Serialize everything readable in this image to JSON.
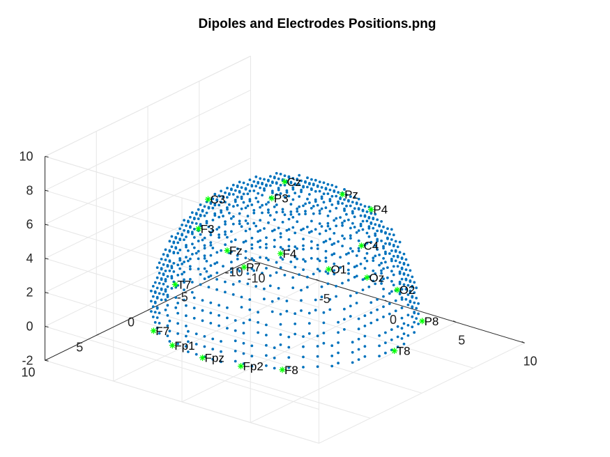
{
  "chart_data": {
    "type": "scatter3d",
    "title": "Dipoles and Electrodes Positions.png",
    "xlabel": "",
    "ylabel": "",
    "zlabel": "",
    "grid": true,
    "xlim": [
      -10,
      10
    ],
    "ylim": [
      -10,
      10
    ],
    "zlim": [
      -2,
      10
    ],
    "xticks": [
      -10,
      -5,
      0,
      5,
      10
    ],
    "yticks": [
      -10,
      -5,
      0,
      5,
      10
    ],
    "zticks": [
      -2,
      0,
      2,
      4,
      6,
      8,
      10
    ],
    "xtick_labels": [
      "-10",
      "-5",
      "0",
      "5",
      "10"
    ],
    "ytick_labels": [
      "-10",
      "-5",
      "0",
      "5",
      "10"
    ],
    "ztick_labels": [
      "-2",
      "0",
      "2",
      "4",
      "6",
      "8",
      "10"
    ],
    "dipoles": {
      "description": "hemispherical grid of dipole positions",
      "radius": 8,
      "spacing": 0.6,
      "z_min": 0,
      "color": "#0072BD"
    },
    "electrodes": {
      "color": "#00FF00",
      "points": [
        {
          "label": "Cz",
          "x": 0.0,
          "y": 0.0,
          "z": 8.0
        },
        {
          "label": "C3",
          "x": -5.6,
          "y": 0.0,
          "z": 5.6
        },
        {
          "label": "C4",
          "x": 5.6,
          "y": 0.0,
          "z": 5.6
        },
        {
          "label": "Fz",
          "x": 0.0,
          "y": 5.6,
          "z": 5.6
        },
        {
          "label": "Pz",
          "x": 0.0,
          "y": -5.6,
          "z": 5.6
        },
        {
          "label": "F3",
          "x": -3.0,
          "y": 4.4,
          "z": 5.8
        },
        {
          "label": "F4",
          "x": 3.0,
          "y": 4.4,
          "z": 5.8
        },
        {
          "label": "P3",
          "x": -4.4,
          "y": -4.6,
          "z": 4.6
        },
        {
          "label": "P4",
          "x": 3.0,
          "y": -4.4,
          "z": 5.8
        },
        {
          "label": "T7",
          "x": -8.0,
          "y": 0.0,
          "z": 0.0
        },
        {
          "label": "T8",
          "x": 8.0,
          "y": 0.0,
          "z": 0.0
        },
        {
          "label": "F7",
          "x": -4.7,
          "y": 6.5,
          "z": 0.0
        },
        {
          "label": "F8",
          "x": 4.7,
          "y": 6.5,
          "z": 0.0
        },
        {
          "label": "P7",
          "x": -6.5,
          "y": -4.7,
          "z": 0.0
        },
        {
          "label": "P8",
          "x": 6.5,
          "y": -4.7,
          "z": 0.0
        },
        {
          "label": "Fpz",
          "x": 0.0,
          "y": 8.0,
          "z": 0.0
        },
        {
          "label": "Fp1",
          "x": -2.5,
          "y": 7.6,
          "z": 0.0
        },
        {
          "label": "Fp2",
          "x": 2.5,
          "y": 7.6,
          "z": 0.0
        },
        {
          "label": "Oz",
          "x": 0.0,
          "y": -8.0,
          "z": 0.0
        },
        {
          "label": "O1",
          "x": -2.5,
          "y": -7.6,
          "z": 0.0
        },
        {
          "label": "O2",
          "x": 2.5,
          "y": -7.6,
          "z": 0.0
        }
      ]
    }
  }
}
